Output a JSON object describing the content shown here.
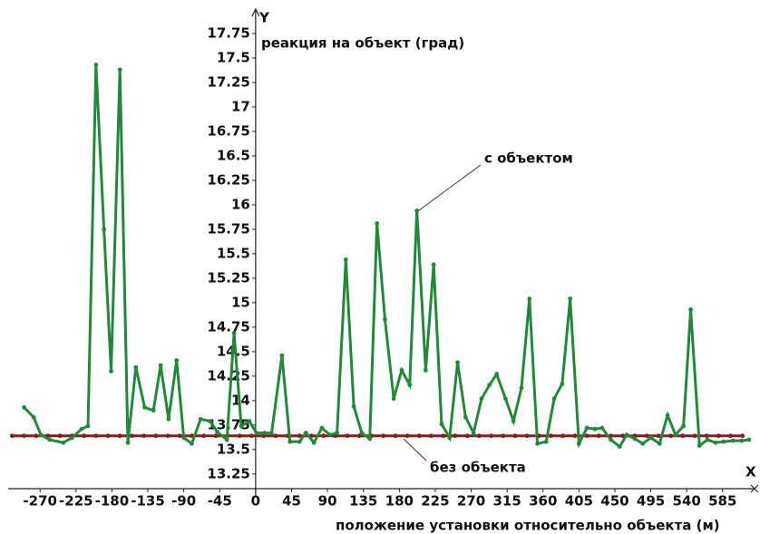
{
  "chart_data": {
    "type": "line",
    "y_label": "Y",
    "y_title": "реакция на объект (град)",
    "x_label": "X",
    "x_title": "положение установки относительно объекта (м)",
    "annotations": [
      "с объектом",
      "без объекта"
    ],
    "xlim": [
      -310,
      625
    ],
    "ylim": [
      13.1,
      18
    ],
    "xticks": [
      -270,
      -225,
      -180,
      -135,
      -90,
      -45,
      0,
      45,
      90,
      135,
      180,
      225,
      270,
      315,
      360,
      405,
      450,
      495,
      540,
      585
    ],
    "yticks": [
      13.25,
      13.5,
      13.75,
      14,
      14.25,
      14.5,
      14.75,
      15,
      15.25,
      15.5,
      15.75,
      16,
      16.25,
      16.5,
      16.75,
      17,
      17.25,
      17.5,
      17.75
    ],
    "series": [
      {
        "color": "#22883a",
        "x": [
          -290,
          -278,
          -269,
          -258,
          -241,
          -230,
          -218,
          -210,
          -200,
          -190,
          -181,
          -170,
          -160,
          -150,
          -139,
          -128,
          -119,
          -109,
          -99,
          -90,
          -80,
          -69,
          -57,
          -48,
          -36,
          -27,
          -18,
          -8,
          1,
          11,
          20,
          33,
          43,
          55,
          63,
          73,
          83,
          93,
          102,
          113,
          123,
          133,
          143,
          152,
          162,
          173,
          183,
          193,
          202,
          213,
          223,
          233,
          243,
          253,
          263,
          273,
          283,
          293,
          302,
          313,
          323,
          333,
          343,
          353,
          364,
          374,
          384,
          394,
          405,
          415,
          425,
          434,
          445,
          456,
          465,
          475,
          485,
          495,
          506,
          516,
          526,
          536,
          545,
          556,
          566,
          576,
          586,
          598,
          609,
          618
        ],
        "values": [
          13.93,
          13.83,
          13.65,
          13.6,
          13.57,
          13.62,
          13.71,
          13.74,
          17.43,
          15.75,
          14.3,
          17.38,
          13.57,
          14.34,
          13.93,
          13.9,
          14.36,
          13.81,
          14.41,
          13.62,
          13.56,
          13.81,
          13.79,
          13.68,
          13.6,
          14.69,
          13.74,
          13.79,
          13.67,
          13.67,
          13.67,
          14.46,
          13.58,
          13.58,
          13.67,
          13.57,
          13.72,
          13.65,
          13.67,
          15.44,
          13.94,
          13.67,
          13.61,
          15.81,
          14.83,
          14.02,
          14.31,
          14.16,
          15.94,
          14.31,
          15.39,
          13.76,
          13.62,
          14.39,
          13.83,
          13.67,
          14.02,
          14.16,
          14.27,
          14.02,
          13.79,
          14.13,
          15.04,
          13.56,
          13.58,
          14.02,
          14.17,
          15.04,
          13.56,
          13.72,
          13.71,
          13.72,
          13.6,
          13.53,
          13.65,
          13.61,
          13.56,
          13.62,
          13.56,
          13.85,
          13.65,
          13.74,
          14.93,
          13.54,
          13.6,
          13.57,
          13.58,
          13.59,
          13.59,
          13.6
        ]
      },
      {
        "color": "#8b1a1a",
        "x": [
          -305,
          -290,
          -275,
          -260,
          -245,
          -230,
          -215,
          -200,
          -185,
          -170,
          -155,
          -140,
          -125,
          -110,
          -95,
          -80,
          -65,
          -50,
          -35,
          -20,
          -5,
          10,
          25,
          40,
          55,
          70,
          85,
          100,
          115,
          130,
          145,
          160,
          175,
          190,
          205,
          220,
          235,
          250,
          265,
          280,
          295,
          310,
          325,
          340,
          355,
          370,
          385,
          400,
          415,
          430,
          445,
          460,
          475,
          490,
          505,
          520,
          535,
          550,
          565,
          580,
          595,
          610
        ],
        "values": [
          13.64,
          13.64,
          13.64,
          13.64,
          13.64,
          13.64,
          13.64,
          13.64,
          13.64,
          13.64,
          13.64,
          13.64,
          13.64,
          13.64,
          13.64,
          13.64,
          13.64,
          13.64,
          13.64,
          13.64,
          13.64,
          13.64,
          13.64,
          13.64,
          13.64,
          13.64,
          13.64,
          13.64,
          13.64,
          13.64,
          13.64,
          13.64,
          13.64,
          13.64,
          13.64,
          13.64,
          13.64,
          13.64,
          13.64,
          13.64,
          13.64,
          13.64,
          13.64,
          13.64,
          13.64,
          13.64,
          13.64,
          13.64,
          13.64,
          13.64,
          13.64,
          13.64,
          13.64,
          13.64,
          13.64,
          13.64,
          13.64,
          13.64,
          13.64,
          13.64,
          13.64,
          13.64
        ]
      }
    ]
  }
}
